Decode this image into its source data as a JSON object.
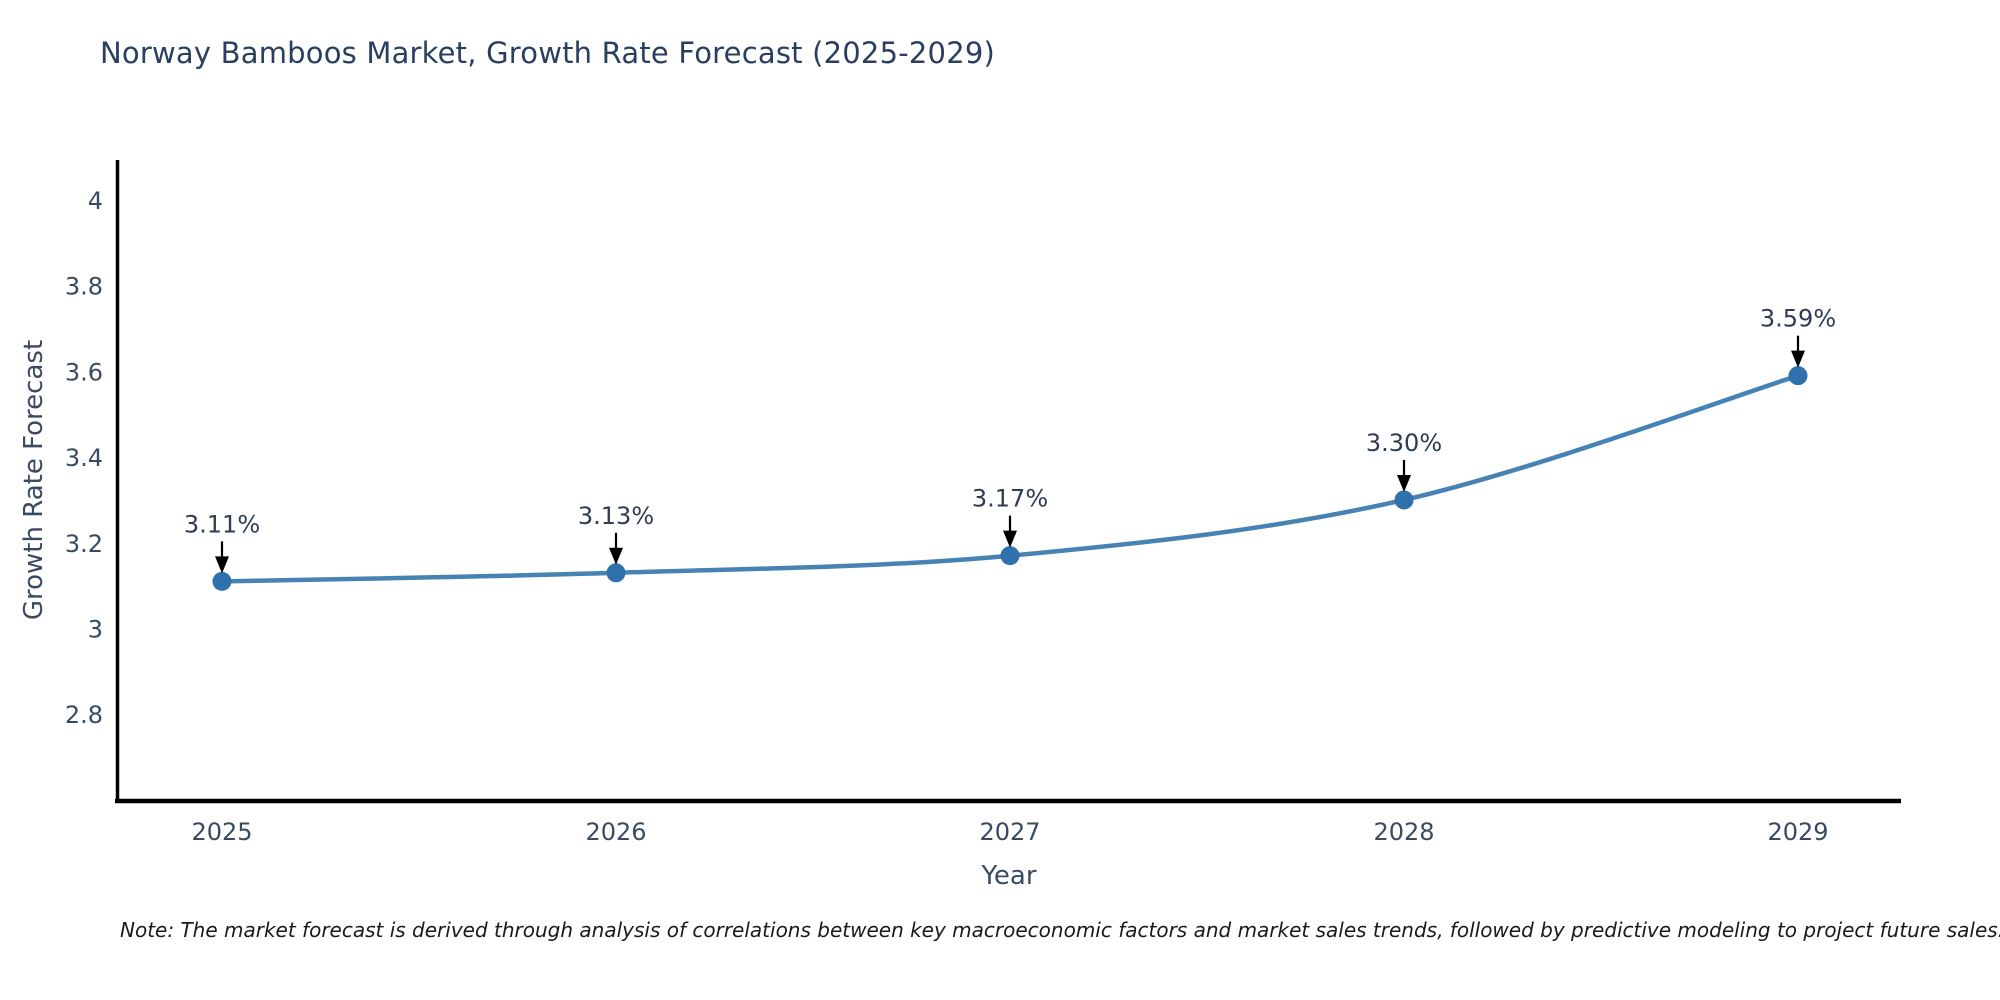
{
  "chart_data": {
    "type": "line",
    "title": "Norway Bamboos Market, Growth Rate Forecast (2025-2029)",
    "xlabel": "Year",
    "ylabel": "Growth Rate Forecast",
    "categories": [
      "2025",
      "2026",
      "2027",
      "2028",
      "2029"
    ],
    "series": [
      {
        "name": "Growth Rate Forecast",
        "values": [
          3.11,
          3.13,
          3.17,
          3.3,
          3.59
        ],
        "labels": [
          "3.11%",
          "3.13%",
          "3.17%",
          "3.30%",
          "3.59%"
        ]
      }
    ],
    "ytick_labels": [
      "4",
      "3.8",
      "3.6",
      "3.4",
      "3.2",
      "3",
      "2.8"
    ],
    "ylim": [
      2.6,
      4.09
    ],
    "grid": false,
    "legend_position": "none",
    "colors": {
      "line": "#4682b4",
      "marker": "#2e71ad",
      "axis": "#000000",
      "tick_text": "#3b4a63",
      "title_text": "#2a3f5f",
      "annotation_arrow": "#000000",
      "note_text": "#1a1a1a"
    },
    "note": "Note: The market forecast is derived through analysis of correlations between key macroeconomic factors and market sales trends, followed by predictive modeling to project future sales."
  }
}
